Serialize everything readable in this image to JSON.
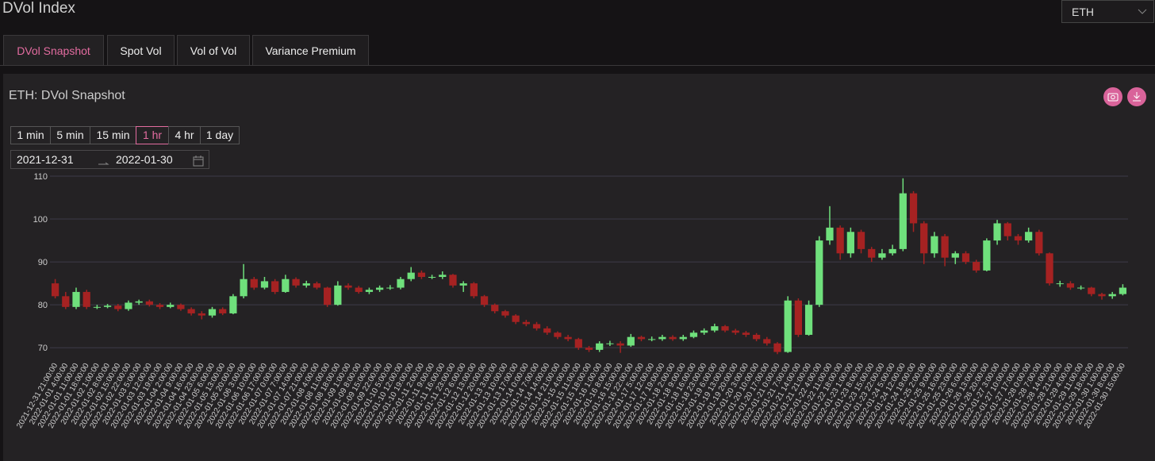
{
  "header": {
    "title": "DVol Index",
    "select": "ETH"
  },
  "tabs": [
    "DVol Snapshot",
    "Spot Vol",
    "Vol of Vol",
    "Variance Premium"
  ],
  "panel": {
    "title": "ETH: DVol Snapshot",
    "intervals": [
      "1 min",
      "5 min",
      "15 min",
      "1 hr",
      "4 hr",
      "1 day"
    ],
    "date_from": "2021-12-31",
    "date_to": "2022-01-30"
  },
  "chart_data": {
    "type": "candlestick",
    "categories": [
      "2021-12-31 21:00:00",
      "2022-01-01 4:00:00",
      "2022-01-01 11:00:00",
      "2022-01-01 18:00:00",
      "2022-01-02 1:00:00",
      "2022-01-02 8:00:00",
      "2022-01-02 15:00:00",
      "2022-01-02 22:00:00",
      "2022-01-03 5:00:00",
      "2022-01-03 12:00:00",
      "2022-01-03 19:00:00",
      "2022-01-04 2:00:00",
      "2022-01-04 9:00:00",
      "2022-01-04 16:00:00",
      "2022-01-04 23:00:00",
      "2022-01-05 6:00:00",
      "2022-01-05 13:00:00",
      "2022-01-05 20:00:00",
      "2022-01-06 3:00:00",
      "2022-01-06 10:00:00",
      "2022-01-06 17:00:00",
      "2022-01-07 0:00:00",
      "2022-01-07 7:00:00",
      "2022-01-07 14:00:00",
      "2022-01-07 21:00:00",
      "2022-01-08 4:00:00",
      "2022-01-08 11:00:00",
      "2022-01-08 18:00:00",
      "2022-01-09 1:00:00",
      "2022-01-09 8:00:00",
      "2022-01-09 15:00:00",
      "2022-01-09 22:00:00",
      "2022-01-10 5:00:00",
      "2022-01-10 12:00:00",
      "2022-01-10 19:00:00",
      "2022-01-11 2:00:00",
      "2022-01-11 9:00:00",
      "2022-01-11 16:00:00",
      "2022-01-11 23:00:00",
      "2022-01-12 6:00:00",
      "2022-01-12 13:00:00",
      "2022-01-12 20:00:00",
      "2022-01-13 3:00:00",
      "2022-01-13 10:00:00",
      "2022-01-13 17:00:00",
      "2022-01-14 0:00:00",
      "2022-01-14 7:00:00",
      "2022-01-14 14:00:00",
      "2022-01-14 21:00:00",
      "2022-01-15 4:00:00",
      "2022-01-15 11:00:00",
      "2022-01-15 18:00:00",
      "2022-01-16 1:00:00",
      "2022-01-16 8:00:00",
      "2022-01-16 15:00:00",
      "2022-01-16 22:00:00",
      "2022-01-17 5:00:00",
      "2022-01-17 12:00:00",
      "2022-01-17 19:00:00",
      "2022-01-18 2:00:00",
      "2022-01-18 9:00:00",
      "2022-01-18 16:00:00",
      "2022-01-18 23:00:00",
      "2022-01-19 6:00:00",
      "2022-01-19 13:00:00",
      "2022-01-19 20:00:00",
      "2022-01-20 3:00:00",
      "2022-01-20 10:00:00",
      "2022-01-20 17:00:00",
      "2022-01-21 0:00:00",
      "2022-01-21 7:00:00",
      "2022-01-21 14:00:00",
      "2022-01-21 21:00:00",
      "2022-01-22 4:00:00",
      "2022-01-22 11:00:00",
      "2022-01-22 18:00:00",
      "2022-01-23 1:00:00",
      "2022-01-23 8:00:00",
      "2022-01-23 15:00:00",
      "2022-01-23 22:00:00",
      "2022-01-24 5:00:00",
      "2022-01-24 12:00:00",
      "2022-01-24 19:00:00",
      "2022-01-25 2:00:00",
      "2022-01-25 9:00:00",
      "2022-01-25 16:00:00",
      "2022-01-25 23:00:00",
      "2022-01-26 6:00:00",
      "2022-01-26 13:00:00",
      "2022-01-26 20:00:00",
      "2022-01-27 3:00:00",
      "2022-01-27 10:00:00",
      "2022-01-27 17:00:00",
      "2022-01-28 0:00:00",
      "2022-01-28 7:00:00",
      "2022-01-28 14:00:00",
      "2022-01-28 21:00:00",
      "2022-01-29 4:00:00",
      "2022-01-29 11:00:00",
      "2022-01-29 18:00:00",
      "2022-01-30 1:00:00",
      "2022-01-30 8:00:00",
      "2022-01-30 15:00:00"
    ],
    "open": [
      85,
      82,
      79.5,
      83,
      79.5,
      79.5,
      79.8,
      79,
      80.5,
      80.8,
      80,
      79.5,
      80,
      79,
      78,
      77.5,
      79,
      78,
      82,
      86,
      84,
      85.5,
      83,
      86,
      84.5,
      85,
      84,
      80,
      84.5,
      84,
      83,
      83.5,
      84,
      84,
      86,
      87.5,
      86.5,
      86.5,
      87,
      84.5,
      85,
      82,
      80,
      78.5,
      77.5,
      76,
      75.5,
      74.5,
      73.5,
      72.5,
      72,
      70,
      69.5,
      71,
      71,
      70.5,
      72.5,
      72,
      72,
      72.5,
      72,
      72.5,
      73.5,
      74,
      75,
      74,
      73.5,
      73,
      72,
      71,
      69,
      81,
      73,
      80,
      95,
      98,
      92,
      97,
      93,
      91,
      92,
      93,
      106,
      99,
      92,
      96,
      91,
      92,
      90,
      88,
      95,
      99,
      96,
      95,
      97,
      92,
      85,
      85,
      84,
      84,
      82.5,
      82,
      82.5
    ],
    "high": [
      86,
      83,
      84,
      83.5,
      80,
      80.2,
      80.2,
      81,
      81.2,
      81.2,
      80.4,
      80.5,
      80.3,
      79.4,
      78.5,
      79.5,
      79.4,
      82.5,
      89.5,
      86.5,
      86.5,
      86,
      87,
      86.4,
      85.6,
      85.4,
      84.2,
      85.5,
      85,
      84.4,
      84,
      84.5,
      84.6,
      86.5,
      88.8,
      88,
      87,
      87.8,
      87.2,
      85.5,
      85.3,
      82.3,
      80.3,
      78.8,
      77.8,
      76.5,
      76,
      75,
      73.8,
      73,
      72.3,
      70.4,
      71.5,
      71.6,
      71.5,
      73.2,
      72.8,
      72.6,
      73,
      72.9,
      73,
      74,
      74.5,
      75.6,
      75.3,
      74.4,
      73.9,
      73.4,
      72.5,
      71.3,
      82,
      81.5,
      81,
      96,
      103,
      98.5,
      98,
      97.5,
      93.5,
      93,
      94,
      109.5,
      106.5,
      99.5,
      97,
      96.5,
      92.5,
      92.5,
      90.5,
      95.5,
      99.8,
      99.3,
      96.5,
      98,
      97.5,
      92.2,
      85.6,
      85.5,
      84.5,
      84.2,
      82.8,
      83,
      84.8
    ],
    "low": [
      81.5,
      79,
      79,
      79,
      79,
      79.2,
      78.5,
      78.6,
      80,
      79.6,
      79,
      79.2,
      78.6,
      77.5,
      76.6,
      77,
      77.6,
      77.8,
      81.5,
      83.5,
      83.6,
      82.5,
      82.8,
      84,
      84,
      83.6,
      79.5,
      79.8,
      83.5,
      82.6,
      82.5,
      83,
      83.5,
      83.6,
      85.5,
      86,
      86,
      86,
      84,
      83,
      81.5,
      79.5,
      78,
      77,
      75.5,
      75,
      74,
      73,
      72,
      71.5,
      69.5,
      69,
      69,
      70.4,
      68.8,
      70.2,
      71.5,
      71.5,
      71.6,
      71.6,
      71.6,
      72.2,
      73,
      73.6,
      73.6,
      73,
      72.5,
      71.5,
      70.5,
      68.5,
      68.8,
      72.5,
      72.8,
      79.5,
      94,
      90.5,
      91,
      92,
      90,
      90.5,
      91.5,
      92.5,
      97,
      89.5,
      91,
      89,
      89.5,
      89.5,
      87.5,
      87.8,
      94,
      95,
      94,
      94.5,
      91.5,
      84.5,
      84.2,
      83.5,
      83.5,
      82,
      81.2,
      81.4,
      82.2
    ],
    "close": [
      82,
      79.5,
      83,
      79.5,
      79.5,
      79.8,
      79,
      80.5,
      80.8,
      80,
      79.5,
      80,
      79,
      78,
      77.5,
      79,
      78,
      82,
      86,
      84,
      85.5,
      83,
      86,
      84.5,
      85,
      84,
      80,
      84.5,
      84,
      83,
      83.5,
      84,
      84,
      86,
      87.5,
      86.5,
      86.5,
      87,
      84.5,
      85,
      82,
      80,
      78.5,
      77.5,
      76,
      75.5,
      74.5,
      73.5,
      72.5,
      72,
      70,
      69.5,
      71,
      71,
      70.5,
      72.5,
      72,
      72,
      72.5,
      72,
      72.5,
      73.5,
      74,
      75,
      74,
      73.5,
      73,
      72,
      71,
      69,
      81,
      73,
      80,
      95,
      98,
      92,
      97,
      93,
      91,
      92,
      93,
      106,
      99,
      92,
      96,
      91,
      92,
      90,
      88,
      95,
      99,
      96,
      95,
      97,
      92,
      85,
      85,
      84,
      84,
      82.5,
      82,
      82.5,
      84
    ],
    "up_color": "#6fe07c",
    "down_color": "#a62222",
    "ylim": [
      68,
      110
    ],
    "yticks": [
      70,
      80,
      90,
      100,
      110
    ],
    "grid": true
  }
}
